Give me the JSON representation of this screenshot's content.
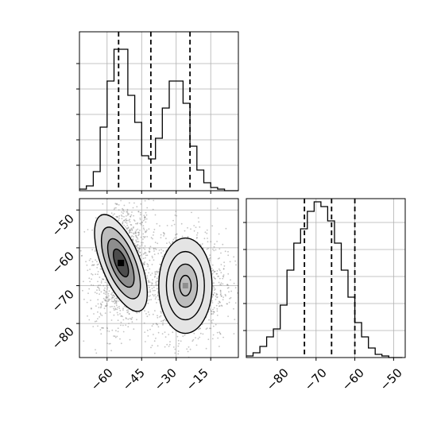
{
  "chart_data": [
    {
      "type": "histogram",
      "panel": "x-marginal",
      "x_range": [
        -72,
        -3
      ],
      "bins": {
        "start": -72,
        "width": 3,
        "values": [
          0.01,
          0.03,
          0.12,
          0.4,
          0.69,
          0.89,
          0.89,
          0.6,
          0.43,
          0.22,
          0.2,
          0.33,
          0.52,
          0.69,
          0.69,
          0.55,
          0.28,
          0.13,
          0.05,
          0.02,
          0.01,
          0,
          0
        ]
      },
      "quantile_lines": [
        -55,
        -41,
        -24
      ],
      "x_ticks": [
        -60,
        -45,
        -30,
        -15
      ],
      "y_ticks": [
        0.16,
        0.32,
        0.48,
        0.64,
        0.8
      ],
      "ylim": [
        0,
        1
      ],
      "grid": true
    },
    {
      "type": "histogram",
      "panel": "y-marginal",
      "x_range": [
        -88,
        -47
      ],
      "bins": {
        "start": -88,
        "width": 1.75,
        "values": [
          0.01,
          0.03,
          0.07,
          0.13,
          0.18,
          0.33,
          0.55,
          0.72,
          0.81,
          0.92,
          0.98,
          0.95,
          0.86,
          0.72,
          0.55,
          0.38,
          0.22,
          0.13,
          0.06,
          0.02,
          0.01,
          0,
          0
        ]
      },
      "quantile_lines": [
        -73,
        -66,
        -60
      ],
      "x_ticks": [
        -80,
        -70,
        -60,
        -50
      ],
      "xlabels_shown": [
        "−80",
        "−70",
        "−60",
        "−50"
      ],
      "y_ticks": [
        0.17,
        0.34,
        0.51,
        0.68,
        0.85
      ],
      "ylim": [
        0,
        1
      ],
      "grid": true
    },
    {
      "type": "scatter-contour",
      "panel": "joint",
      "xlim": [
        -72,
        -3
      ],
      "ylim": [
        -89,
        -47
      ],
      "x_ticks": [
        -60,
        -45,
        -30,
        -15
      ],
      "y_ticks": [
        -50,
        -60,
        -70,
        -80
      ],
      "clusters": [
        {
          "center": [
            -54,
            -64
          ],
          "sigma": [
            4.0,
            6.5
          ],
          "rotation_deg": -22,
          "peak_level": 0.95
        },
        {
          "center": [
            -26,
            -70
          ],
          "sigma": [
            5.5,
            6.0
          ],
          "rotation_deg": 0,
          "peak_level": 0.7
        }
      ],
      "contour_levels": [
        0.5,
        1.0,
        1.5,
        2.0
      ],
      "grid": true
    }
  ],
  "axes": {
    "hist_x_tick_labels": [
      "−60",
      "−45",
      "−30",
      "−15"
    ],
    "joint_y_tick_labels": [
      "−50",
      "−60",
      "−70",
      "−80"
    ],
    "hist_y_tick_labels": [
      "−80",
      "−70",
      "−60",
      "−50"
    ]
  },
  "colors": {
    "background": "#ffffff",
    "frame": "#000000",
    "grid": "#b0b0b0",
    "hist_line": "#000000",
    "quantile_line": "#000000",
    "scatter_point": "#7a7a7a",
    "contour_line": "#000000",
    "density_fill": [
      "#ffffff",
      "#e4e4e4",
      "#bdbdbd",
      "#8e8e8e",
      "#4d4d4d",
      "#000000"
    ]
  }
}
